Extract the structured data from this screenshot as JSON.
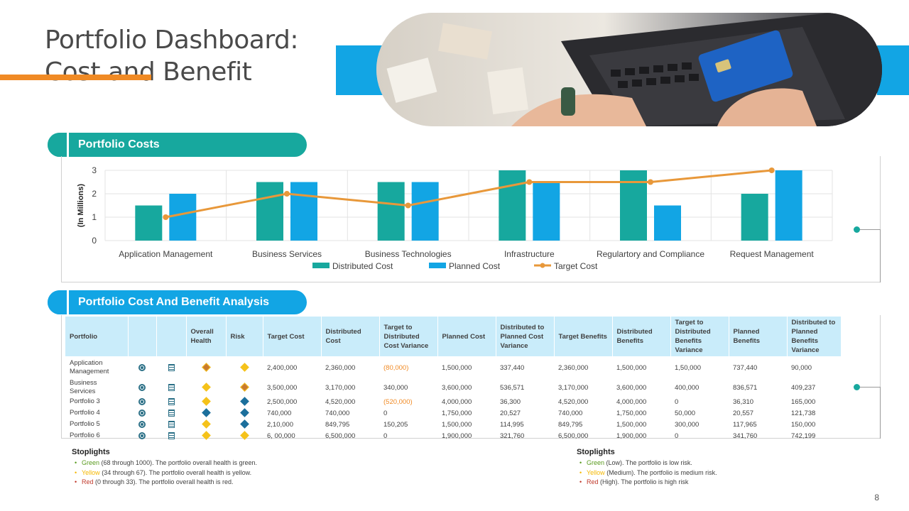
{
  "title": {
    "line1": "Portfolio Dashboard:",
    "line2": "Cost and Benefit"
  },
  "colors": {
    "teal": "#17a89e",
    "blue": "#12a5e4",
    "orange": "#f08a24",
    "line": "#e8983a",
    "header_bg": "#c9ecfa"
  },
  "section_costs": {
    "label": "Portfolio Costs"
  },
  "section_analysis": {
    "label": "Portfolio Cost And Benefit Analysis"
  },
  "chart_data": {
    "type": "bar",
    "title": "Portfolio Costs",
    "ylabel": "(In Millions)",
    "xlabel": "",
    "ylim": [
      0,
      3
    ],
    "yticks": [
      "0",
      "1",
      "2",
      "3"
    ],
    "grid": true,
    "legend_position": "bottom",
    "categories": [
      "Application Management",
      "Business Services",
      "Business Technologies",
      "Infrastructure",
      "Regulartory and Compliance",
      "Request Management"
    ],
    "series": [
      {
        "name": "Distributed Cost",
        "type": "bar",
        "color": "#17a89e",
        "values": [
          1.5,
          2.5,
          2.5,
          3,
          3,
          2
        ]
      },
      {
        "name": "Planned Cost",
        "type": "bar",
        "color": "#12a5e4",
        "values": [
          2,
          2.5,
          2.5,
          2.5,
          1.5,
          3
        ]
      },
      {
        "name": "Target Cost",
        "type": "line",
        "color": "#e8983a",
        "values": [
          1,
          2,
          1.5,
          2.5,
          2.5,
          3
        ]
      }
    ]
  },
  "table": {
    "headers": [
      "Portfolio",
      "",
      "",
      "Overall Health",
      "Risk",
      "Target Cost",
      "Distributed Cost",
      "Target to Distributed Cost Variance",
      "Planned Cost",
      "Distributed to Planned Cost Variance",
      "Target Benefits",
      "Distributed Benefits",
      "Target to Distributed Benefits Variance",
      "Planned Benefits",
      "Distributed to Planned Benefits Variance"
    ],
    "rows": [
      {
        "name": "Application Management",
        "health": "orange",
        "risk": "yellow",
        "target_cost": "2,400,000",
        "distributed_cost": "2,360,000",
        "tdc_variance": "(80,000)",
        "tdc_negative": true,
        "planned_cost": "1,500,000",
        "dpc_variance": "337,440",
        "target_benefits": "2,360,000",
        "distributed_benefits": "1,500,000",
        "tdb_variance": "1,50,000",
        "planned_benefits": "737,440",
        "dpb_variance": "90,000"
      },
      {
        "name": "Business Services",
        "health": "yellow",
        "risk": "orange",
        "target_cost": "3,500,000",
        "distributed_cost": "3,170,000",
        "tdc_variance": "340,000",
        "tdc_negative": false,
        "planned_cost": "3,600,000",
        "dpc_variance": "536,571",
        "target_benefits": "3,170,000",
        "distributed_benefits": "3,600,000",
        "tdb_variance": "400,000",
        "planned_benefits": "836,571",
        "dpb_variance": "409,237"
      },
      {
        "name": "Portfolio 3",
        "health": "yellow",
        "risk": "blue",
        "target_cost": "2,500,000",
        "distributed_cost": "4,520,000",
        "tdc_variance": "(520,000)",
        "tdc_negative": true,
        "planned_cost": "4,000,000",
        "dpc_variance": "36,300",
        "target_benefits": "4,520,000",
        "distributed_benefits": "4,000,000",
        "tdb_variance": "0",
        "planned_benefits": "36,310",
        "dpb_variance": "165,000"
      },
      {
        "name": "Portfolio 4",
        "health": "blue",
        "risk": "blue",
        "target_cost": "740,000",
        "distributed_cost": "740,000",
        "tdc_variance": "0",
        "tdc_negative": false,
        "planned_cost": "1,750,000",
        "dpc_variance": "20,527",
        "target_benefits": "740,000",
        "distributed_benefits": "1,750,000",
        "tdb_variance": "50,000",
        "planned_benefits": "20,557",
        "dpb_variance": "121,738"
      },
      {
        "name": "Portfolio 5",
        "health": "yellow",
        "risk": "blue",
        "target_cost": "2,10,000",
        "distributed_cost": "849,795",
        "tdc_variance": "150,205",
        "tdc_negative": false,
        "planned_cost": "1,500,000",
        "dpc_variance": "114,995",
        "target_benefits": "849,795",
        "distributed_benefits": "1,500,000",
        "tdb_variance": "300,000",
        "planned_benefits": "117,965",
        "dpb_variance": "150,000"
      },
      {
        "name": "Portfolio 6",
        "health": "yellow",
        "risk": "yellow",
        "target_cost": "6, 00,000",
        "distributed_cost": "6,500,000",
        "tdc_variance": "0",
        "tdc_negative": false,
        "planned_cost": "1,900,000",
        "dpc_variance": "321,760",
        "target_benefits": "6,500,000",
        "distributed_benefits": "1,900,000",
        "tdb_variance": "0",
        "planned_benefits": "341,760",
        "dpb_variance": "742,199"
      }
    ]
  },
  "stoplights_health": {
    "heading": "Stoplights",
    "items": [
      {
        "color_word": "Green",
        "range": " (68 through 1000). The portfolio overall health is green."
      },
      {
        "color_word": "Yellow",
        "range": " (34 through 67). The portfolio overall health is yellow."
      },
      {
        "color_word": "Red",
        "range": " (0 through 33). The portfolio overall health is red."
      }
    ]
  },
  "stoplights_risk": {
    "heading": "Stoplights",
    "items": [
      {
        "color_word": "Green",
        "range": " (Low). The portfolio is low risk."
      },
      {
        "color_word": "Yellow",
        "range": " (Medium). The portfolio is medium risk."
      },
      {
        "color_word": "Red",
        "range": " (High). The portfolio is high risk"
      }
    ]
  },
  "page_number": "8"
}
